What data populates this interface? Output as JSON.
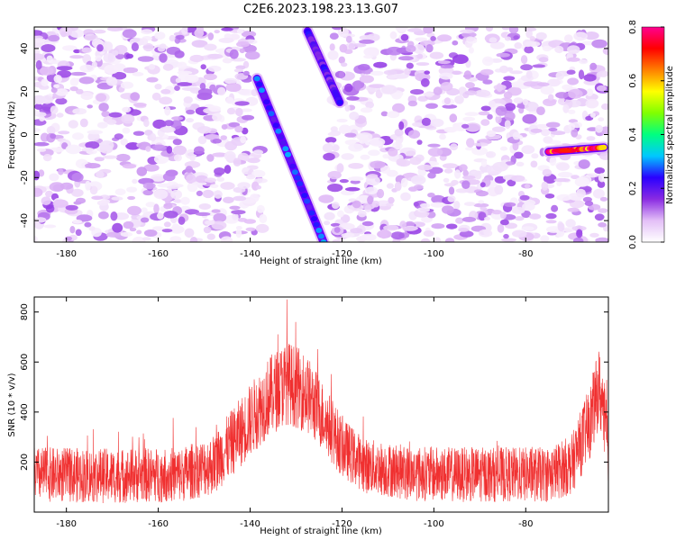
{
  "title": "C2E6.2023.198.23.13.G07",
  "chart_data": [
    {
      "type": "heatmap",
      "xlabel": "Height of straight line (km)",
      "ylabel": "Frequency (Hz)",
      "xlim": [
        -187,
        -62
      ],
      "ylim": [
        -50,
        50
      ],
      "xticks": [
        -180,
        -160,
        -140,
        -120,
        -100,
        -80
      ],
      "yticks": [
        -40,
        -20,
        0,
        20,
        40
      ],
      "colorbar": {
        "label": "Normalized spectral amplitude",
        "range": [
          0.0,
          0.8
        ],
        "ticks": [
          "0.0",
          "0.2",
          "0.4",
          "0.6",
          "0.8"
        ],
        "colors": [
          "#ffffff",
          "#e3bff7",
          "#8a2be2",
          "#2a00ff",
          "#00c8ff",
          "#00ff80",
          "#80ff00",
          "#ffff00",
          "#ff8000",
          "#ff0000",
          "#ff0090"
        ]
      },
      "ridges": [
        {
          "x": [
            -138.5,
            -124
          ],
          "y": [
            26,
            -50
          ],
          "amplitude": 0.25
        },
        {
          "x": [
            -127.5,
            -120.5
          ],
          "y": [
            48,
            15
          ],
          "amplitude": 0.2
        },
        {
          "x": [
            -75,
            -63
          ],
          "y": [
            -8,
            -6
          ],
          "amplitude": 0.75
        }
      ],
      "background_noise": {
        "amplitude_range": [
          0.02,
          0.15
        ],
        "clear_region_x": [
          -140,
          -122
        ]
      }
    },
    {
      "type": "line",
      "xlabel": "Height of straight line (km)",
      "ylabel": "SNR (10 * v/v)",
      "xlim": [
        -187,
        -62
      ],
      "ylim": [
        0,
        860
      ],
      "xticks": [
        -180,
        -160,
        -140,
        -120,
        -100,
        -80
      ],
      "yticks": [
        200,
        400,
        600,
        800
      ],
      "color": "#f03030",
      "envelope": {
        "x": [
          -187,
          -170,
          -155,
          -148,
          -142,
          -136,
          -132,
          -128,
          -124,
          -120,
          -115,
          -105,
          -95,
          -85,
          -75,
          -70,
          -66,
          -64,
          -62
        ],
        "mean": [
          150,
          145,
          150,
          190,
          320,
          460,
          520,
          480,
          380,
          260,
          185,
          155,
          150,
          150,
          150,
          190,
          360,
          500,
          250
        ],
        "spread": [
          110,
          110,
          110,
          120,
          140,
          160,
          170,
          160,
          140,
          120,
          110,
          110,
          110,
          110,
          110,
          120,
          150,
          160,
          150
        ]
      },
      "peak": {
        "x": -132,
        "y": 850
      }
    }
  ]
}
